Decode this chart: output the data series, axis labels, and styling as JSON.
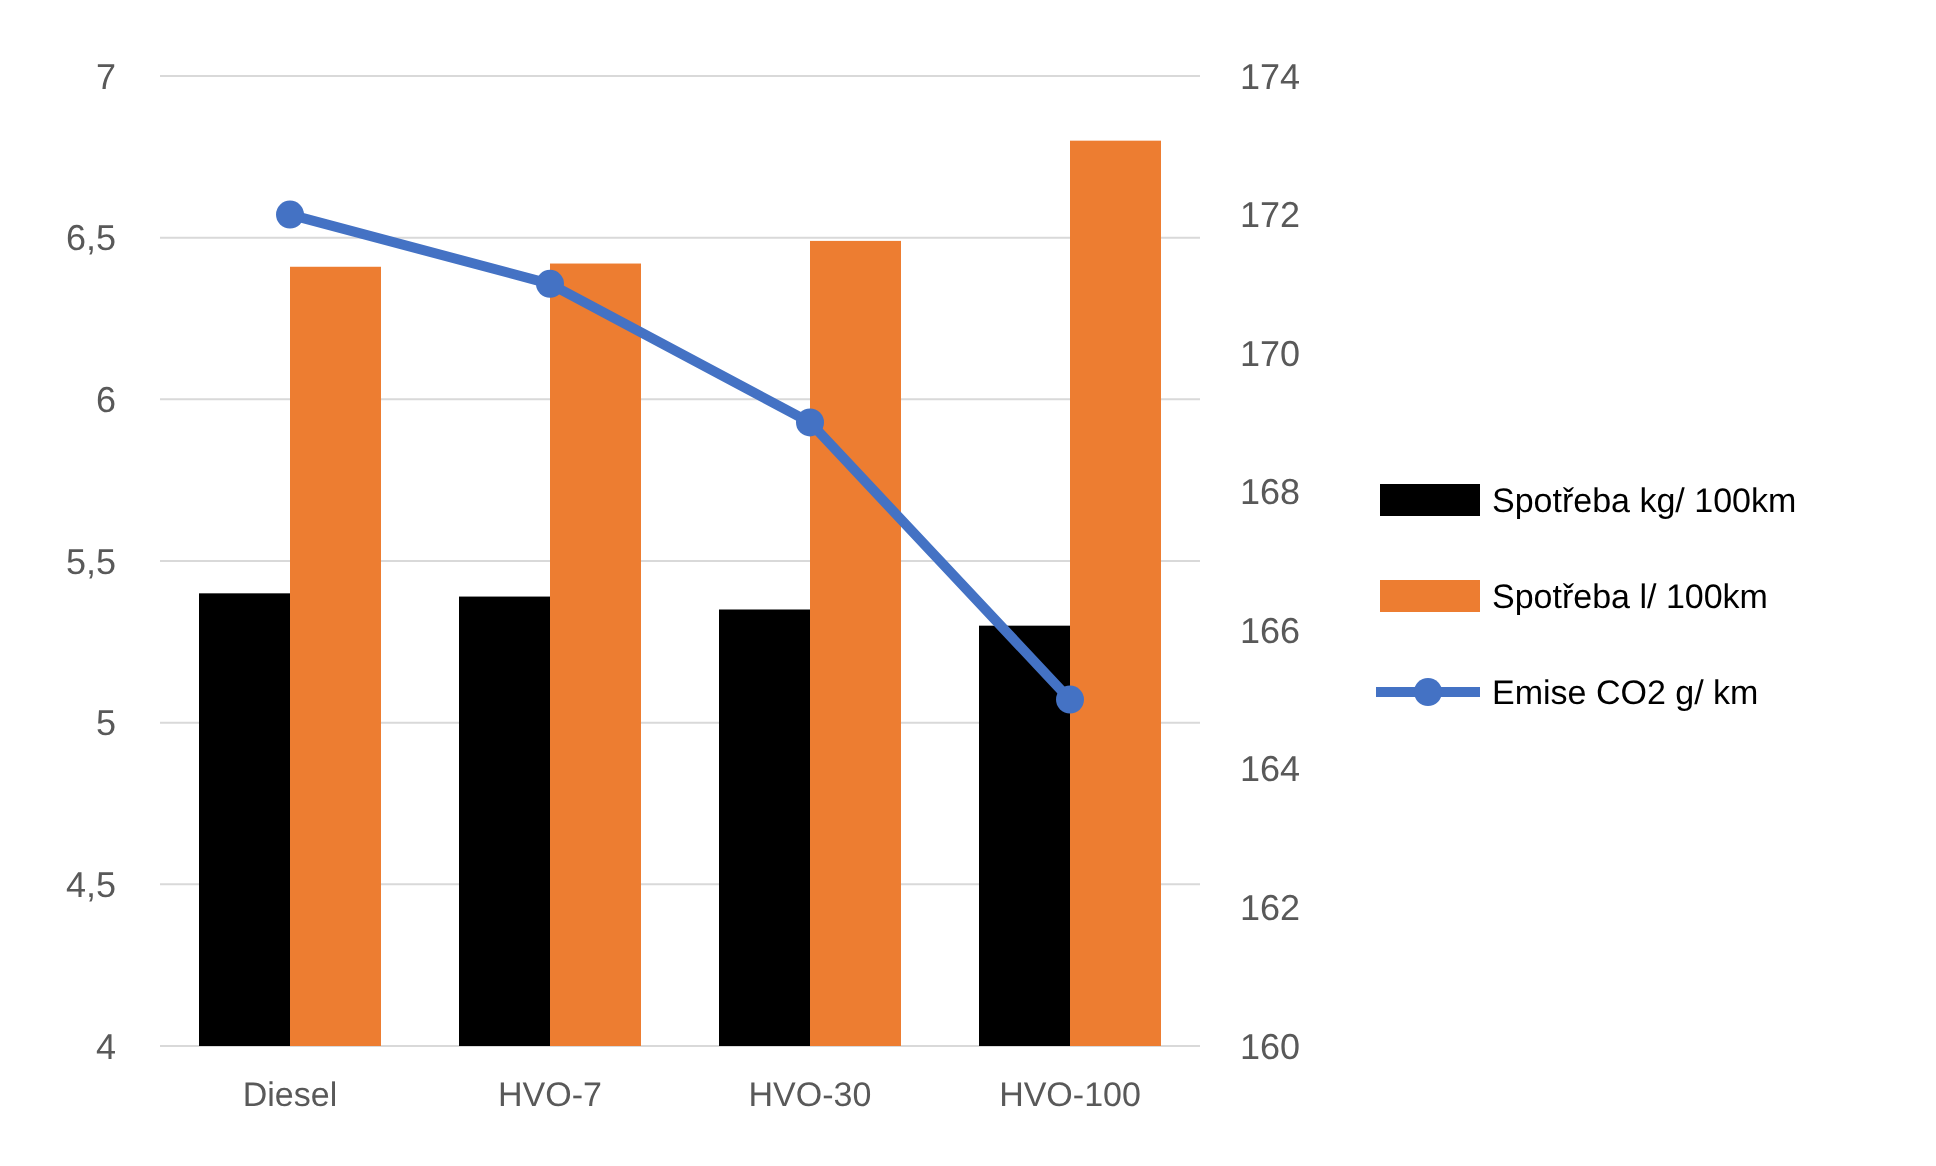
{
  "chart_data": {
    "type": "bar",
    "categories": [
      "Diesel",
      "HVO-7",
      "HVO-30",
      "HVO-100"
    ],
    "series": [
      {
        "name": "Spotřeba kg/ 100km",
        "color": "#000000",
        "values": [
          5.4,
          5.39,
          5.35,
          5.3
        ]
      },
      {
        "name": "Spotřeba l/ 100km",
        "color": "#ed7d31",
        "values": [
          6.41,
          6.42,
          6.49,
          6.8
        ]
      },
      {
        "name": "Emise CO2 g/ km",
        "color": "#4472c4",
        "type": "line",
        "axis": "y2",
        "marker": "circle",
        "values": [
          172,
          171,
          169,
          165
        ]
      }
    ],
    "ylim": [
      4,
      7
    ],
    "yticks": [
      4,
      {
        "value": 4.5,
        "label": "4,5"
      },
      5,
      {
        "value": 5.5,
        "label": "5,5"
      },
      6,
      {
        "value": 6.5,
        "label": "6,5"
      },
      7
    ],
    "y2lim": [
      160,
      174
    ],
    "y2ticks": [
      160,
      162,
      164,
      166,
      168,
      170,
      172,
      174
    ],
    "grid": "y",
    "legend": "right"
  }
}
